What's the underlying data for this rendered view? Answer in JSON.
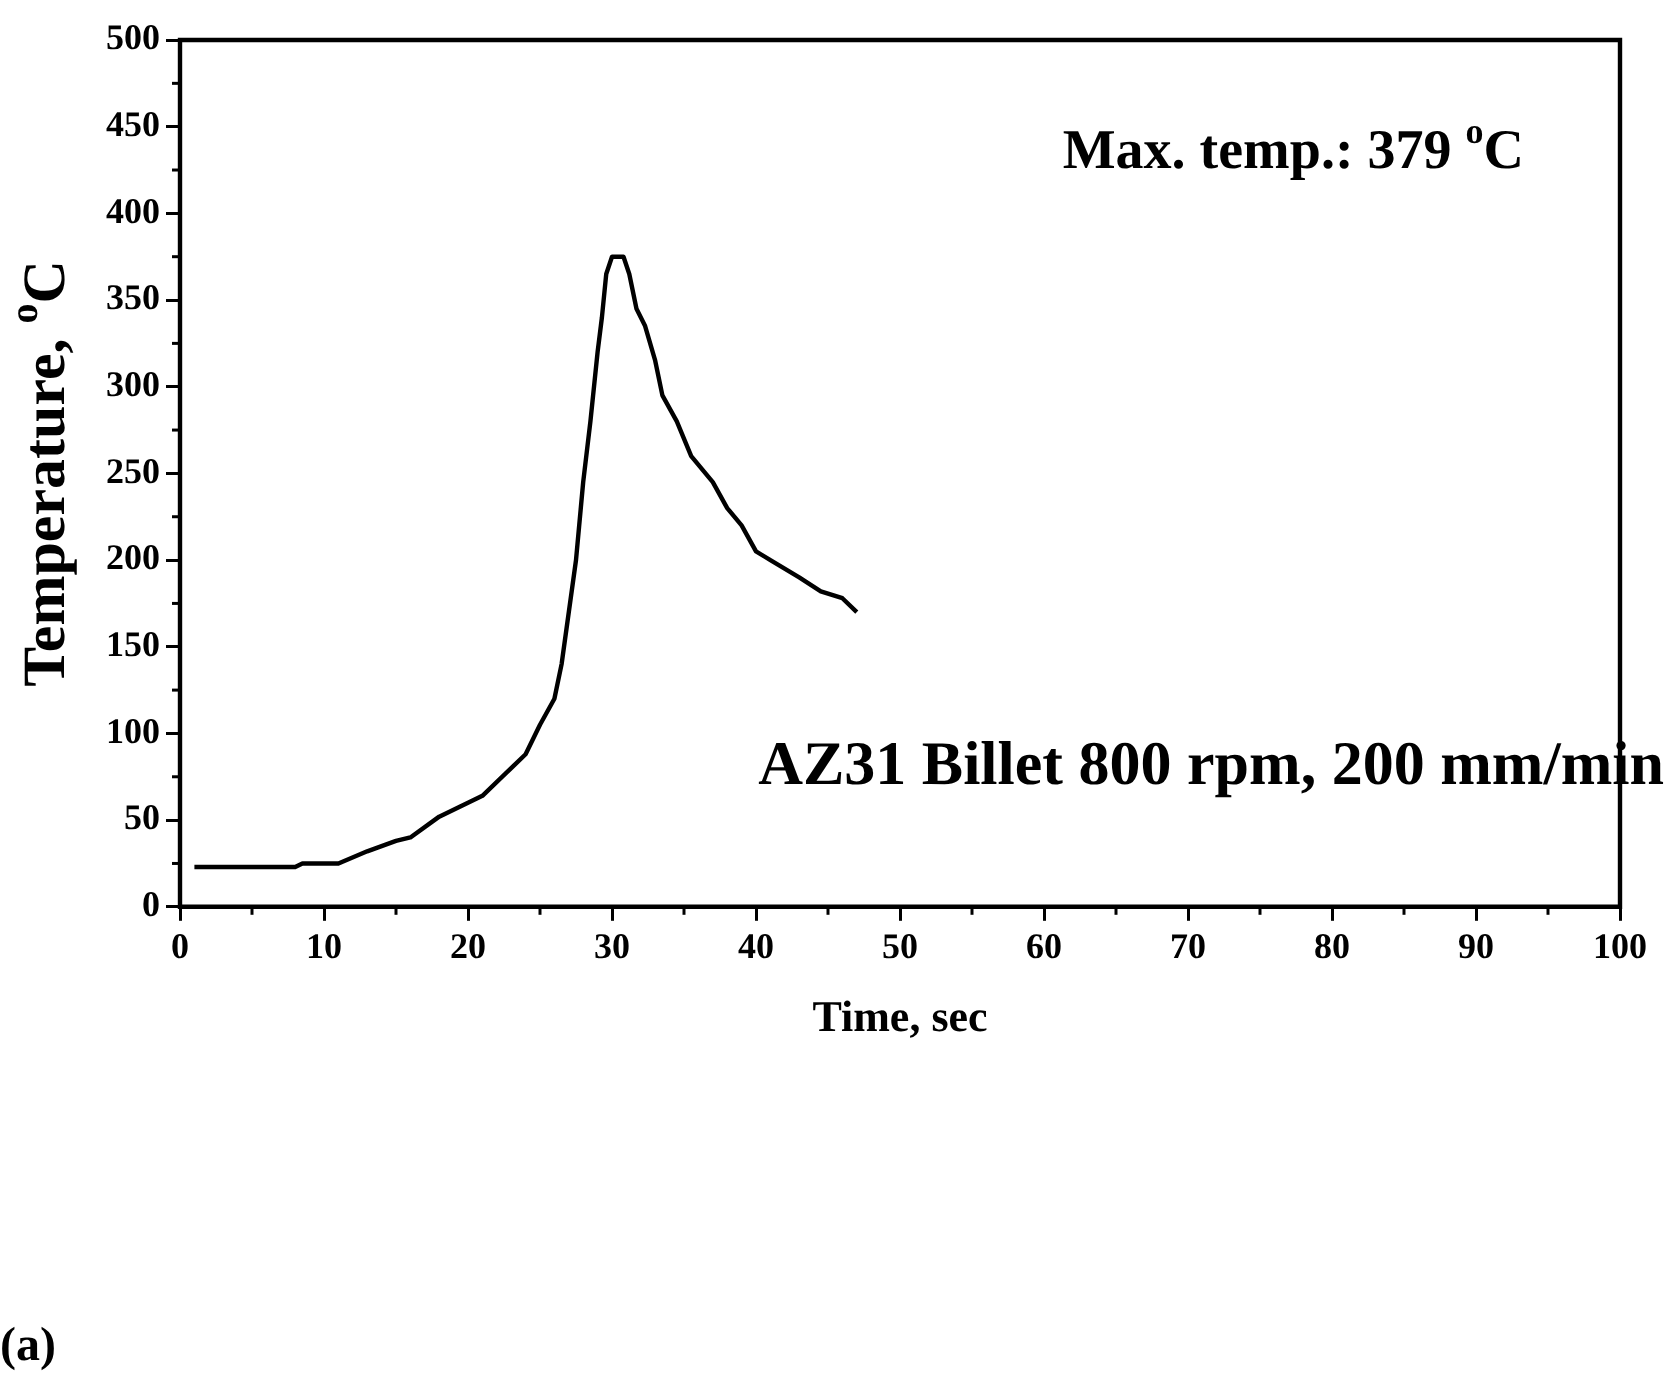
{
  "chart_data": {
    "type": "line",
    "xlabel": "Time, sec",
    "ylabel": "Temperature, $^{o}$C",
    "annotations": [
      "Max. temp.: 379 $^{o}$C",
      "AZ31 Billet 800 rpm, 200 mm/min",
      "(a)"
    ],
    "x": [
      1,
      8,
      8.5,
      11,
      13,
      15,
      16,
      18,
      20,
      21,
      23,
      24,
      25,
      26,
      26.5,
      27,
      27.5,
      28,
      28.5,
      29,
      29.3,
      29.6,
      30,
      30.8,
      31.2,
      31.7,
      32.3,
      33,
      33.5,
      34.5,
      35.5,
      37,
      38,
      39,
      40,
      41,
      43,
      44.5,
      46,
      47
    ],
    "series": [
      {
        "color": "#000000",
        "values": [
          23,
          23,
          25,
          25,
          32,
          38,
          40,
          52,
          60,
          64,
          80,
          88,
          105,
          120,
          140,
          170,
          200,
          245,
          280,
          320,
          340,
          365,
          375,
          375,
          365,
          345,
          335,
          315,
          295,
          280,
          260,
          245,
          230,
          220,
          205,
          200,
          190,
          182,
          178,
          170
        ]
      }
    ],
    "xlim": [
      0,
      100
    ],
    "xticks": [
      0,
      10,
      20,
      30,
      40,
      50,
      60,
      70,
      80,
      90,
      100
    ],
    "ylim": [
      0,
      500
    ],
    "yticks": [
      0,
      50,
      100,
      150,
      200,
      250,
      300,
      350,
      400,
      450,
      500
    ],
    "grid": false,
    "legend": false,
    "marker": "none",
    "line_style": "solid"
  }
}
